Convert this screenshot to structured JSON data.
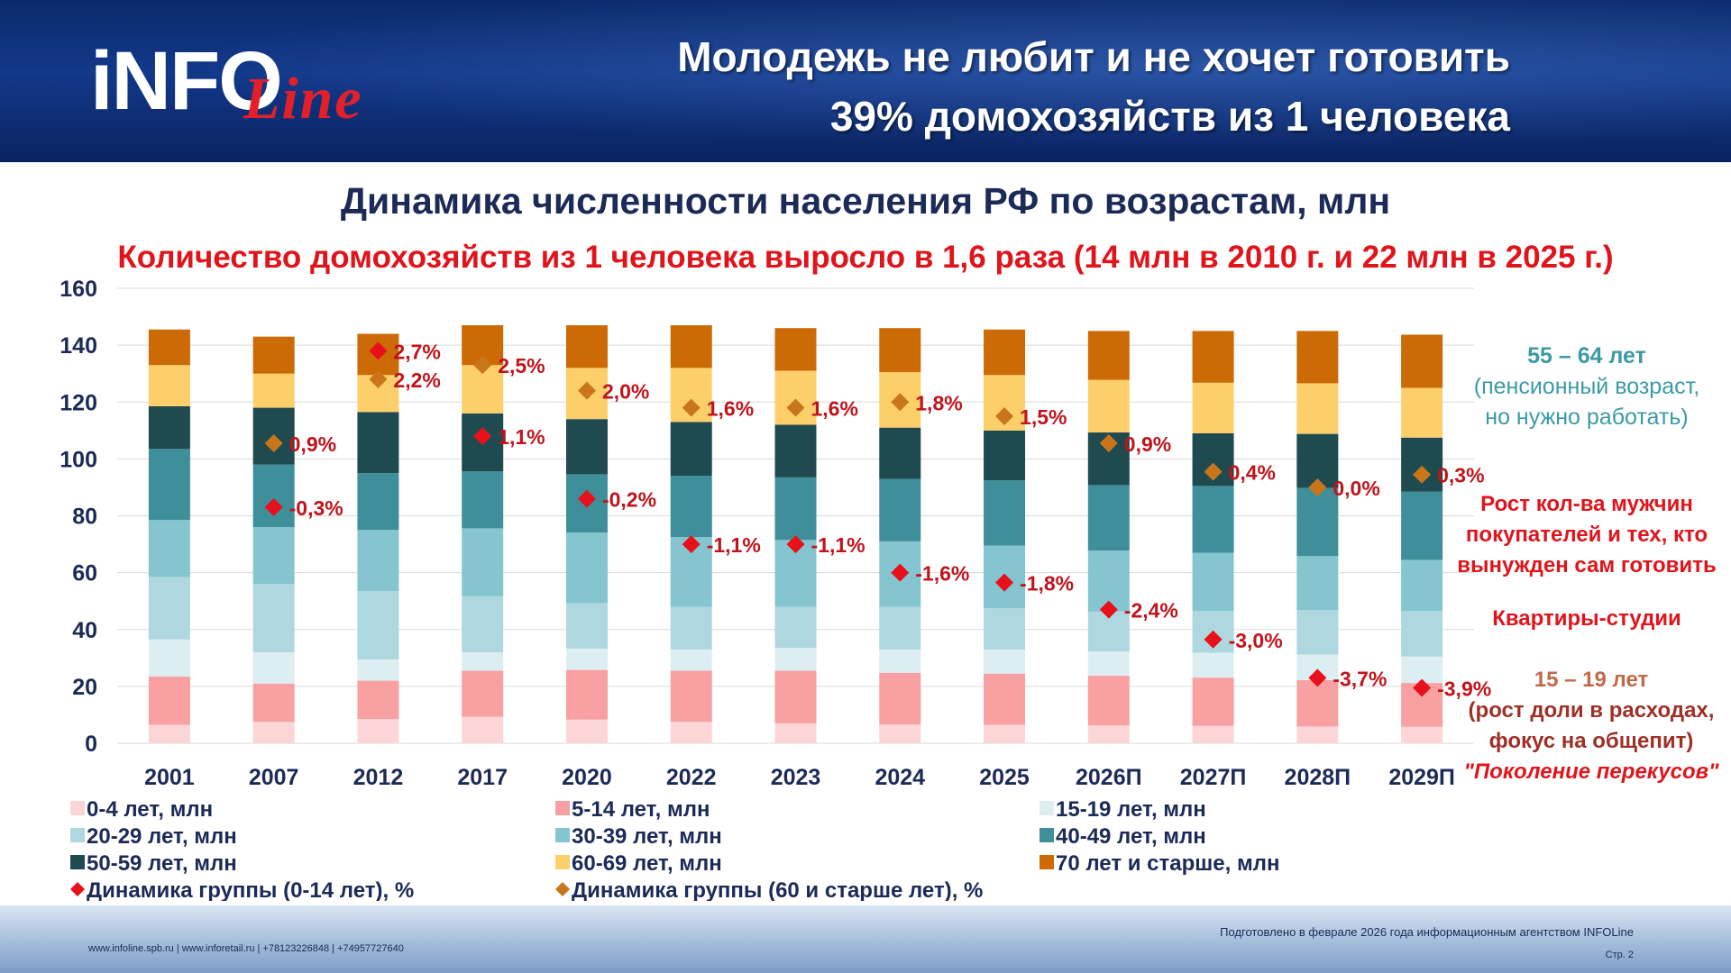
{
  "header": {
    "logo_main": "iNFO",
    "logo_script": "Line",
    "title_line1": "Молодежь не любит и не хочет готовить",
    "title_line2": "39% домохозяйств из 1 человека"
  },
  "colors": {
    "age_0_4": "#fcd6d6",
    "age_5_14": "#f8a0a2",
    "age_15_19": "#ddeef2",
    "age_20_29": "#aed7e0",
    "age_30_39": "#84c5d0",
    "age_40_49": "#3f8f9a",
    "age_50_59": "#1f4a50",
    "age_60_69": "#fdcf6a",
    "age_70_plus": "#cc6a06",
    "marker_young": "#e8101a",
    "marker_old": "#c9761a",
    "label_red": "#c0141b",
    "header_bg": "#0b2a6b"
  },
  "chart_data": {
    "type": "bar",
    "stacked": true,
    "title": "Динамика численности населения РФ по возрастам, млн",
    "subtitle": "Количество домохозяйств из 1 человека выросло в 1,6 раза (14 млн в 2010 г. и 22 млн в 2025 г.)",
    "categories": [
      "2001",
      "2007",
      "2012",
      "2017",
      "2020",
      "2022",
      "2023",
      "2024",
      "2025",
      "2026П",
      "2027П",
      "2028П",
      "2029П"
    ],
    "ylim": [
      0,
      160
    ],
    "yticks": [
      0,
      20,
      40,
      60,
      80,
      100,
      120,
      140,
      160
    ],
    "grid": true,
    "legend_position": "bottom",
    "series": [
      {
        "name": "0-4 лет, млн",
        "key": "age_0_4",
        "values": [
          6.5,
          7.5,
          8.5,
          9.3,
          8.3,
          7.5,
          7.0,
          6.6,
          6.5,
          6.3,
          6.1,
          5.9,
          5.8
        ]
      },
      {
        "name": "5-14 лет, млн",
        "key": "age_5_14",
        "values": [
          17.0,
          13.5,
          13.5,
          16.2,
          17.5,
          18.0,
          18.5,
          18.2,
          18.0,
          17.5,
          17.0,
          16.3,
          15.4
        ]
      },
      {
        "name": "15-19 лет, млн",
        "key": "age_15_19",
        "values": [
          13.0,
          11.0,
          7.5,
          6.5,
          7.5,
          7.5,
          8.0,
          8.2,
          8.5,
          8.5,
          8.7,
          9.0,
          9.3
        ]
      },
      {
        "name": "20-29 лет, млн",
        "key": "age_20_29",
        "values": [
          22.0,
          24.0,
          24.0,
          19.8,
          16.0,
          15.0,
          14.5,
          15.0,
          14.5,
          14.0,
          14.7,
          15.6,
          16.0
        ]
      },
      {
        "name": "30-39 лет, млн",
        "key": "age_30_39",
        "values": [
          20.0,
          20.0,
          21.5,
          23.8,
          24.8,
          24.5,
          23.5,
          23.0,
          22.0,
          21.5,
          20.5,
          19.0,
          18.0
        ]
      },
      {
        "name": "40-49 лет, млн",
        "key": "age_40_49",
        "values": [
          25.0,
          22.0,
          20.0,
          20.0,
          20.5,
          21.6,
          22.0,
          22.0,
          23.0,
          23.0,
          23.5,
          24.0,
          24.0
        ]
      },
      {
        "name": "50-59 лет, млн",
        "key": "age_50_59",
        "values": [
          15.0,
          20.0,
          21.5,
          20.4,
          19.4,
          18.9,
          18.5,
          18.0,
          17.5,
          18.5,
          18.5,
          19.0,
          19.0
        ]
      },
      {
        "name": "60-69 лет, млн",
        "key": "age_60_69",
        "values": [
          14.5,
          12.0,
          13.0,
          17.0,
          18.0,
          19.0,
          19.0,
          19.5,
          19.5,
          18.5,
          17.8,
          17.8,
          17.5
        ]
      },
      {
        "name": "70 лет и старше, млн",
        "key": "age_70_plus",
        "values": [
          12.5,
          13.0,
          14.5,
          14.0,
          15.0,
          15.0,
          15.0,
          15.5,
          16.0,
          17.2,
          18.2,
          18.4,
          18.7
        ]
      }
    ],
    "markers": [
      {
        "name": "Динамика группы (0-14 лет), %",
        "key": "marker_young",
        "values": [
          null,
          83,
          138,
          108,
          86,
          70,
          70,
          60,
          56.5,
          47,
          36.5,
          23,
          19.5
        ],
        "labels": [
          "",
          "-0,3%",
          "2,7%",
          "1,1%",
          "-0,2%",
          "-1,1%",
          "-1,1%",
          "-1,6%",
          "-1,8%",
          "-2,4%",
          "-3,0%",
          "-3,7%",
          "-3,9%"
        ]
      },
      {
        "name": "Динамика группы (60 и старше лет), %",
        "key": "marker_old",
        "values": [
          null,
          105.5,
          128,
          133,
          124,
          118,
          118,
          120,
          115,
          105.5,
          95.5,
          90,
          94.5
        ],
        "labels": [
          "",
          "0,9%",
          "2,2%",
          "2,5%",
          "2,0%",
          "1,6%",
          "1,6%",
          "1,8%",
          "1,5%",
          "0,9%",
          "0,4%",
          "0,0%",
          "0,3%"
        ]
      }
    ]
  },
  "annotations": {
    "age_55_64_line1": "55 – 64 лет",
    "age_55_64_line2": "(пенсионный возраст,",
    "age_55_64_line3": "но нужно работать)",
    "men_line1": "Рост кол-ва мужчин",
    "men_line2": "покупателей и тех, кто",
    "men_line3": "вынужден сам готовить",
    "studios": "Квартиры-студии",
    "teen_line1": "15 – 19 лет",
    "teen_line2": "(рост доли в расходах,",
    "teen_line3": "фокус на общепит)",
    "teen_line4": "\"Поколение перекусов\""
  },
  "footer": {
    "contacts": "www.infoline.spb.ru  | www.inforetail.ru  | +78123226848  | +74957727640",
    "prepared": "Подготовлено в феврале 2026 года информационным агентством INFOLine",
    "page": "Стр. 2"
  }
}
